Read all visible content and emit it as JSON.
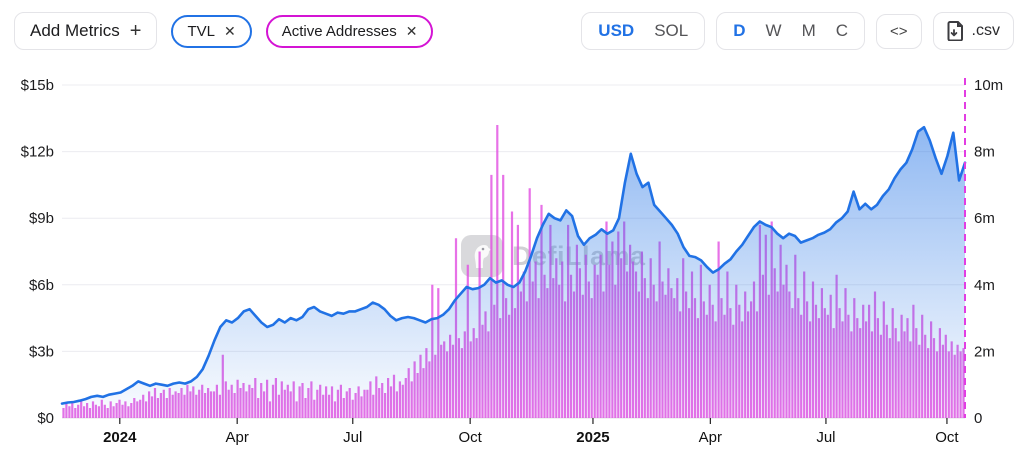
{
  "toolbar": {
    "add_metrics": {
      "label": "Add Metrics",
      "plus": "+"
    },
    "metrics": [
      {
        "label": "TVL",
        "close": "✕",
        "color": "#2172e5"
      },
      {
        "label": "Active Addresses",
        "close": "✕",
        "color": "#d414d4"
      }
    ],
    "currency_toggle": {
      "options": [
        "USD",
        "SOL"
      ],
      "selected": "USD"
    },
    "interval_toggle": {
      "options": [
        "D",
        "W",
        "M",
        "C"
      ],
      "selected": "D"
    },
    "embed_label": "<>",
    "csv_label": ".csv"
  },
  "watermark": {
    "text": "DefiLlama"
  },
  "chart_data": {
    "type": "mixed",
    "grid": "horizontal",
    "left_axis": {
      "labels": [
        "$0",
        "$3b",
        "$6b",
        "$9b",
        "$12b",
        "$15b"
      ],
      "values": [
        0,
        3,
        6,
        9,
        12,
        15
      ],
      "max": 15,
      "unit": "$b"
    },
    "right_axis": {
      "labels": [
        "0",
        "2m",
        "4m",
        "6m",
        "8m",
        "10m"
      ],
      "values": [
        0,
        2,
        4,
        6,
        8,
        10
      ],
      "max": 10,
      "unit": "m"
    },
    "x_ticks": [
      {
        "label": "2024",
        "pos": 0.064,
        "bold": true
      },
      {
        "label": "Apr",
        "pos": 0.194
      },
      {
        "label": "Jul",
        "pos": 0.322
      },
      {
        "label": "Oct",
        "pos": 0.452
      },
      {
        "label": "2025",
        "pos": 0.588,
        "bold": true
      },
      {
        "label": "Apr",
        "pos": 0.718
      },
      {
        "label": "Jul",
        "pos": 0.846
      },
      {
        "label": "Oct",
        "pos": 0.98
      }
    ],
    "cursor_line": {
      "pos": 1.0,
      "color": "#e23de2",
      "style": "dashed"
    },
    "series": [
      {
        "name": "TVL",
        "type": "area-line",
        "axis": "left",
        "unit": "$b",
        "color": "#2172e5",
        "values": [
          0.65,
          0.7,
          0.72,
          0.78,
          0.85,
          0.95,
          1.0,
          0.95,
          1.05,
          1.1,
          1.15,
          1.3,
          1.45,
          1.65,
          1.55,
          1.45,
          1.55,
          1.5,
          1.45,
          1.55,
          1.6,
          1.55,
          1.65,
          1.85,
          2.2,
          2.8,
          3.5,
          4.1,
          4.4,
          4.3,
          4.5,
          4.8,
          4.9,
          4.6,
          4.3,
          4.1,
          4.2,
          4.45,
          4.3,
          4.5,
          4.4,
          4.55,
          4.9,
          5.0,
          4.8,
          4.7,
          4.6,
          4.75,
          4.7,
          4.8,
          4.8,
          4.9,
          5.0,
          5.2,
          5.1,
          4.9,
          4.6,
          4.4,
          4.5,
          4.55,
          4.5,
          4.4,
          4.3,
          4.45,
          4.5,
          4.65,
          4.9,
          5.3,
          5.6,
          5.9,
          5.8,
          5.85,
          6.0,
          6.3,
          6.1,
          6.2,
          6.0,
          5.9,
          6.1,
          6.6,
          7.3,
          8.1,
          8.7,
          9.2,
          9.0,
          8.9,
          9.35,
          9.1,
          8.2,
          7.8,
          8.1,
          8.25,
          8.5,
          8.3,
          8.45,
          9.0,
          10.6,
          11.9,
          11.0,
          10.4,
          10.6,
          9.6,
          9.3,
          9.0,
          8.7,
          8.3,
          7.7,
          7.3,
          7.25,
          7.1,
          6.8,
          6.55,
          6.7,
          6.95,
          7.15,
          7.5,
          7.8,
          8.2,
          8.6,
          8.85,
          8.7,
          8.6,
          8.3,
          8.1,
          8.3,
          8.2,
          7.9,
          8.0,
          8.1,
          8.25,
          8.35,
          8.5,
          8.8,
          9.0,
          9.3,
          10.2,
          9.4,
          9.65,
          9.4,
          9.6,
          10.0,
          10.3,
          10.8,
          11.2,
          11.5,
          12.1,
          12.9,
          13.1,
          12.5,
          11.7,
          11.0,
          11.8,
          12.85,
          10.7,
          11.5
        ]
      },
      {
        "name": "Active Addresses",
        "type": "bar",
        "axis": "right",
        "unit": "m",
        "color": "#e14ee1",
        "values": [
          0.3,
          0.45,
          0.35,
          0.5,
          0.3,
          0.4,
          0.55,
          0.35,
          0.45,
          0.3,
          0.5,
          0.4,
          0.35,
          0.55,
          0.4,
          0.3,
          0.5,
          0.35,
          0.45,
          0.55,
          0.4,
          0.5,
          0.35,
          0.45,
          0.6,
          0.5,
          0.55,
          0.7,
          0.5,
          0.8,
          0.65,
          0.9,
          0.6,
          0.75,
          0.85,
          0.6,
          0.9,
          0.7,
          0.8,
          0.75,
          0.9,
          0.7,
          1.0,
          0.8,
          0.95,
          0.7,
          0.85,
          1.0,
          0.75,
          0.9,
          0.8,
          0.8,
          1.0,
          0.7,
          1.9,
          1.1,
          0.85,
          1.0,
          0.75,
          1.15,
          0.9,
          1.05,
          0.8,
          1.0,
          0.9,
          1.2,
          0.6,
          1.05,
          0.8,
          1.15,
          0.5,
          1.0,
          1.2,
          0.7,
          1.1,
          0.85,
          1.0,
          0.8,
          1.1,
          0.5,
          0.95,
          1.05,
          0.6,
          0.9,
          1.1,
          0.55,
          0.85,
          1.0,
          0.7,
          0.95,
          0.7,
          0.95,
          0.5,
          0.85,
          1.0,
          0.6,
          0.8,
          0.9,
          0.55,
          0.75,
          0.95,
          0.65,
          0.85,
          0.85,
          1.1,
          0.7,
          1.25,
          0.9,
          1.05,
          0.75,
          1.2,
          0.95,
          1.3,
          0.8,
          1.1,
          1.0,
          1.2,
          1.5,
          1.1,
          1.7,
          1.35,
          1.9,
          1.5,
          2.1,
          1.7,
          4.0,
          1.9,
          3.9,
          2.2,
          2.3,
          2.0,
          2.5,
          2.2,
          5.4,
          2.4,
          2.1,
          2.6,
          4.6,
          2.3,
          2.7,
          2.4,
          5.0,
          2.8,
          3.2,
          2.6,
          7.3,
          3.4,
          8.8,
          3.0,
          7.3,
          3.6,
          3.1,
          6.2,
          3.3,
          5.8,
          3.8,
          4.4,
          3.5,
          6.9,
          4.1,
          4.7,
          3.6,
          6.4,
          4.3,
          3.9,
          5.8,
          4.2,
          4.8,
          4.0,
          4.7,
          3.5,
          5.8,
          4.3,
          3.8,
          5.2,
          4.5,
          3.7,
          4.9,
          4.1,
          3.6,
          4.6,
          4.3,
          4.9,
          3.8,
          5.9,
          4.6,
          5.3,
          4.0,
          5.6,
          4.8,
          5.9,
          4.4,
          5.2,
          4.7,
          4.4,
          3.8,
          5.0,
          4.2,
          3.6,
          4.8,
          4.0,
          3.5,
          5.3,
          4.1,
          3.7,
          4.5,
          3.9,
          3.6,
          4.2,
          3.2,
          4.8,
          3.8,
          3.3,
          4.4,
          3.6,
          3.0,
          4.6,
          3.5,
          3.1,
          4.0,
          3.4,
          2.9,
          5.3,
          3.6,
          3.1,
          4.4,
          3.3,
          2.8,
          4.0,
          3.4,
          2.9,
          3.8,
          3.2,
          3.5,
          4.1,
          3.2,
          5.8,
          4.3,
          5.5,
          3.7,
          5.9,
          4.5,
          3.8,
          5.2,
          4.0,
          4.6,
          3.8,
          3.3,
          4.9,
          3.6,
          3.1,
          4.4,
          3.5,
          2.9,
          4.1,
          3.4,
          3.0,
          3.9,
          3.3,
          3.1,
          3.7,
          2.7,
          4.3,
          3.3,
          2.9,
          3.9,
          3.1,
          2.6,
          3.6,
          3.0,
          2.7,
          3.4,
          2.9,
          3.4,
          2.6,
          3.8,
          3.0,
          2.5,
          3.5,
          2.8,
          2.4,
          3.3,
          2.7,
          2.3,
          3.1,
          2.6,
          3.0,
          2.3,
          3.4,
          2.7,
          2.2,
          3.1,
          2.5,
          2.1,
          2.9,
          2.4,
          2.0,
          2.7,
          2.2,
          2.5,
          2.0,
          2.3,
          1.9,
          2.2,
          2.0,
          2.1
        ]
      }
    ]
  }
}
